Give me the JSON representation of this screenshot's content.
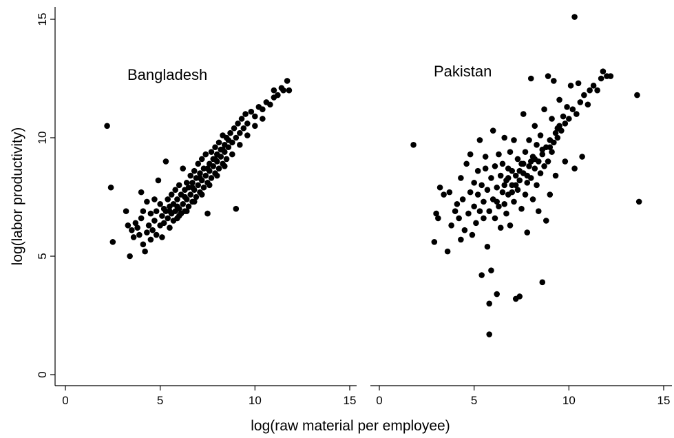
{
  "chart_data": {
    "type": "scatter",
    "xlabel": "log(raw material per employee)",
    "ylabel": "log(labor productivity)",
    "xlim": [
      0,
      15
    ],
    "ylim": [
      0,
      15
    ],
    "xticks": [
      0,
      5,
      10,
      15
    ],
    "yticks": [
      0,
      5,
      10,
      15
    ],
    "grid": false,
    "marker_color": "#000000",
    "panels": [
      {
        "title": "Bangladesh",
        "points": [
          [
            2.2,
            10.5
          ],
          [
            2.4,
            7.9
          ],
          [
            2.5,
            5.6
          ],
          [
            3.2,
            6.9
          ],
          [
            3.3,
            6.3
          ],
          [
            3.4,
            5.0
          ],
          [
            3.5,
            6.1
          ],
          [
            3.6,
            5.8
          ],
          [
            3.7,
            6.4
          ],
          [
            3.8,
            6.2
          ],
          [
            3.9,
            5.9
          ],
          [
            4.0,
            7.7
          ],
          [
            4.0,
            6.6
          ],
          [
            4.1,
            5.5
          ],
          [
            4.1,
            6.9
          ],
          [
            4.2,
            5.2
          ],
          [
            4.3,
            6.0
          ],
          [
            4.3,
            7.3
          ],
          [
            4.4,
            6.3
          ],
          [
            4.5,
            5.7
          ],
          [
            4.5,
            6.8
          ],
          [
            4.6,
            6.1
          ],
          [
            4.7,
            7.4
          ],
          [
            4.7,
            6.5
          ],
          [
            4.8,
            5.9
          ],
          [
            4.8,
            6.9
          ],
          [
            4.9,
            8.2
          ],
          [
            5.0,
            6.3
          ],
          [
            5.0,
            7.2
          ],
          [
            5.1,
            6.7
          ],
          [
            5.1,
            5.8
          ],
          [
            5.2,
            7.0
          ],
          [
            5.2,
            6.4
          ],
          [
            5.3,
            6.9
          ],
          [
            5.3,
            9.0
          ],
          [
            5.4,
            6.6
          ],
          [
            5.4,
            7.4
          ],
          [
            5.5,
            6.2
          ],
          [
            5.5,
            7.1
          ],
          [
            5.6,
            6.8
          ],
          [
            5.6,
            7.6
          ],
          [
            5.7,
            6.5
          ],
          [
            5.7,
            7.2
          ],
          [
            5.8,
            6.9
          ],
          [
            5.8,
            7.8
          ],
          [
            5.9,
            6.6
          ],
          [
            5.9,
            7.4
          ],
          [
            6.0,
            7.0
          ],
          [
            6.0,
            8.0
          ],
          [
            6.1,
            6.8
          ],
          [
            6.1,
            7.6
          ],
          [
            6.2,
            7.2
          ],
          [
            6.2,
            8.7
          ],
          [
            6.3,
            6.9
          ],
          [
            6.3,
            7.8
          ],
          [
            6.4,
            7.4
          ],
          [
            6.4,
            8.1
          ],
          [
            6.5,
            7.1
          ],
          [
            6.5,
            7.9
          ],
          [
            6.6,
            7.6
          ],
          [
            6.6,
            8.4
          ],
          [
            6.7,
            7.3
          ],
          [
            6.7,
            8.1
          ],
          [
            6.8,
            7.8
          ],
          [
            6.8,
            8.6
          ],
          [
            6.9,
            7.5
          ],
          [
            6.9,
            8.3
          ],
          [
            7.0,
            8.0
          ],
          [
            7.0,
            8.9
          ],
          [
            7.1,
            7.7
          ],
          [
            7.1,
            8.5
          ],
          [
            7.2,
            8.2
          ],
          [
            7.2,
            9.1
          ],
          [
            7.3,
            7.9
          ],
          [
            7.3,
            8.7
          ],
          [
            7.4,
            8.4
          ],
          [
            7.4,
            9.3
          ],
          [
            7.5,
            6.8
          ],
          [
            7.5,
            8.1
          ],
          [
            7.6,
            8.9
          ],
          [
            7.6,
            8.6
          ],
          [
            7.7,
            9.4
          ],
          [
            7.7,
            8.3
          ],
          [
            7.8,
            9.1
          ],
          [
            7.8,
            8.8
          ],
          [
            7.9,
            9.6
          ],
          [
            7.9,
            8.5
          ],
          [
            8.0,
            9.3
          ],
          [
            8.0,
            9.0
          ],
          [
            8.1,
            9.8
          ],
          [
            8.1,
            8.7
          ],
          [
            8.2,
            9.5
          ],
          [
            8.2,
            9.2
          ],
          [
            8.3,
            10.1
          ],
          [
            8.3,
            8.9
          ],
          [
            8.4,
            9.7
          ],
          [
            8.4,
            9.4
          ],
          [
            8.5,
            10.0
          ],
          [
            8.5,
            9.1
          ],
          [
            8.6,
            9.9
          ],
          [
            8.6,
            9.6
          ],
          [
            8.7,
            10.2
          ],
          [
            8.8,
            9.8
          ],
          [
            8.9,
            10.4
          ],
          [
            9.0,
            7.0
          ],
          [
            9.0,
            10.0
          ],
          [
            9.1,
            10.6
          ],
          [
            9.2,
            10.2
          ],
          [
            9.3,
            10.8
          ],
          [
            9.4,
            10.4
          ],
          [
            9.5,
            11.0
          ],
          [
            9.6,
            10.6
          ],
          [
            9.8,
            11.1
          ],
          [
            10.0,
            10.9
          ],
          [
            10.2,
            11.3
          ],
          [
            10.4,
            11.2
          ],
          [
            10.6,
            11.5
          ],
          [
            10.8,
            11.4
          ],
          [
            11.0,
            11.7
          ],
          [
            11.0,
            12.0
          ],
          [
            11.2,
            11.8
          ],
          [
            11.4,
            12.1
          ],
          [
            11.5,
            12.0
          ],
          [
            11.7,
            12.4
          ],
          [
            11.8,
            12.0
          ],
          [
            6.0,
            6.7
          ],
          [
            6.4,
            6.9
          ],
          [
            6.8,
            7.3
          ],
          [
            7.2,
            7.6
          ],
          [
            7.6,
            8.0
          ],
          [
            8.0,
            8.4
          ],
          [
            8.4,
            8.8
          ],
          [
            8.8,
            9.3
          ],
          [
            9.2,
            9.7
          ],
          [
            9.6,
            10.1
          ],
          [
            10.0,
            10.5
          ],
          [
            10.4,
            10.8
          ],
          [
            5.5,
            6.9
          ],
          [
            5.9,
            7.1
          ],
          [
            6.3,
            7.5
          ],
          [
            6.7,
            7.9
          ],
          [
            7.1,
            8.3
          ],
          [
            7.5,
            8.7
          ],
          [
            7.9,
            9.1
          ],
          [
            8.3,
            9.5
          ]
        ]
      },
      {
        "title": "Pakistan",
        "points": [
          [
            1.8,
            9.7
          ],
          [
            2.9,
            5.6
          ],
          [
            3.0,
            6.8
          ],
          [
            3.1,
            6.6
          ],
          [
            3.2,
            7.9
          ],
          [
            3.4,
            7.6
          ],
          [
            3.6,
            5.2
          ],
          [
            3.7,
            7.7
          ],
          [
            3.8,
            6.3
          ],
          [
            4.0,
            6.9
          ],
          [
            4.1,
            7.2
          ],
          [
            4.2,
            6.6
          ],
          [
            4.3,
            5.7
          ],
          [
            4.3,
            8.3
          ],
          [
            4.4,
            7.4
          ],
          [
            4.5,
            6.1
          ],
          [
            4.6,
            8.9
          ],
          [
            4.7,
            6.8
          ],
          [
            4.8,
            7.7
          ],
          [
            4.8,
            9.3
          ],
          [
            4.9,
            5.9
          ],
          [
            5.0,
            8.1
          ],
          [
            5.0,
            7.1
          ],
          [
            5.1,
            6.4
          ],
          [
            5.2,
            8.6
          ],
          [
            5.2,
            7.6
          ],
          [
            5.3,
            6.9
          ],
          [
            5.3,
            9.9
          ],
          [
            5.4,
            4.2
          ],
          [
            5.4,
            8.0
          ],
          [
            5.5,
            7.3
          ],
          [
            5.5,
            6.6
          ],
          [
            5.6,
            8.7
          ],
          [
            5.6,
            9.2
          ],
          [
            5.7,
            5.4
          ],
          [
            5.7,
            7.8
          ],
          [
            5.8,
            3.0
          ],
          [
            5.8,
            6.9
          ],
          [
            5.8,
            1.7
          ],
          [
            5.9,
            4.4
          ],
          [
            5.9,
            8.3
          ],
          [
            6.0,
            7.4
          ],
          [
            6.0,
            10.3
          ],
          [
            6.1,
            6.6
          ],
          [
            6.1,
            8.8
          ],
          [
            6.2,
            3.4
          ],
          [
            6.2,
            7.9
          ],
          [
            6.3,
            7.1
          ],
          [
            6.3,
            9.3
          ],
          [
            6.4,
            8.4
          ],
          [
            6.4,
            6.2
          ],
          [
            6.5,
            7.7
          ],
          [
            6.5,
            8.9
          ],
          [
            6.6,
            7.2
          ],
          [
            6.6,
            10.0
          ],
          [
            6.7,
            8.2
          ],
          [
            6.7,
            6.8
          ],
          [
            6.8,
            8.7
          ],
          [
            6.8,
            7.6
          ],
          [
            6.9,
            9.4
          ],
          [
            6.9,
            6.3
          ],
          [
            7.0,
            8.0
          ],
          [
            7.0,
            8.6
          ],
          [
            7.1,
            7.3
          ],
          [
            7.1,
            9.9
          ],
          [
            7.2,
            3.2
          ],
          [
            7.2,
            8.4
          ],
          [
            7.3,
            7.8
          ],
          [
            7.3,
            9.1
          ],
          [
            7.4,
            3.3
          ],
          [
            7.4,
            8.2
          ],
          [
            7.5,
            7.0
          ],
          [
            7.5,
            8.9
          ],
          [
            7.6,
            8.5
          ],
          [
            7.6,
            11.0
          ],
          [
            7.7,
            7.6
          ],
          [
            7.7,
            9.4
          ],
          [
            7.8,
            8.1
          ],
          [
            7.8,
            6.0
          ],
          [
            7.9,
            8.8
          ],
          [
            7.9,
            9.9
          ],
          [
            8.0,
            8.3
          ],
          [
            8.0,
            12.5
          ],
          [
            8.1,
            7.4
          ],
          [
            8.1,
            9.2
          ],
          [
            8.2,
            8.7
          ],
          [
            8.2,
            10.5
          ],
          [
            8.3,
            8.0
          ],
          [
            8.3,
            9.7
          ],
          [
            8.4,
            9.0
          ],
          [
            8.4,
            6.9
          ],
          [
            8.5,
            8.5
          ],
          [
            8.5,
            10.1
          ],
          [
            8.6,
            3.9
          ],
          [
            8.6,
            9.3
          ],
          [
            8.7,
            8.8
          ],
          [
            8.7,
            11.2
          ],
          [
            8.8,
            6.5
          ],
          [
            8.8,
            9.6
          ],
          [
            8.9,
            9.0
          ],
          [
            8.9,
            12.6
          ],
          [
            9.0,
            9.9
          ],
          [
            9.0,
            7.6
          ],
          [
            9.1,
            9.4
          ],
          [
            9.1,
            10.8
          ],
          [
            9.2,
            9.8
          ],
          [
            9.2,
            12.4
          ],
          [
            9.3,
            10.2
          ],
          [
            9.3,
            8.4
          ],
          [
            9.4,
            10.0
          ],
          [
            9.5,
            10.5
          ],
          [
            9.5,
            11.6
          ],
          [
            9.6,
            10.3
          ],
          [
            9.7,
            10.9
          ],
          [
            9.8,
            9.0
          ],
          [
            9.8,
            10.6
          ],
          [
            9.9,
            11.3
          ],
          [
            10.0,
            10.8
          ],
          [
            10.1,
            12.2
          ],
          [
            10.2,
            11.2
          ],
          [
            10.3,
            15.1
          ],
          [
            10.3,
            8.7
          ],
          [
            10.4,
            11.0
          ],
          [
            10.5,
            12.3
          ],
          [
            10.6,
            11.5
          ],
          [
            10.7,
            9.2
          ],
          [
            10.8,
            11.8
          ],
          [
            11.0,
            11.4
          ],
          [
            11.1,
            12.0
          ],
          [
            11.3,
            12.2
          ],
          [
            11.5,
            12.0
          ],
          [
            11.7,
            12.5
          ],
          [
            11.8,
            12.8
          ],
          [
            12.0,
            12.6
          ],
          [
            12.2,
            12.6
          ],
          [
            13.6,
            11.8
          ],
          [
            13.7,
            7.3
          ],
          [
            6.6,
            8.0
          ],
          [
            7.0,
            7.7
          ],
          [
            7.4,
            8.6
          ],
          [
            7.8,
            8.4
          ],
          [
            8.2,
            9.1
          ],
          [
            8.6,
            9.5
          ],
          [
            9.0,
            9.6
          ],
          [
            9.4,
            10.4
          ],
          [
            6.2,
            7.3
          ],
          [
            6.8,
            8.3
          ],
          [
            7.2,
            8.0
          ],
          [
            7.6,
            8.9
          ],
          [
            8.0,
            9.0
          ]
        ]
      }
    ]
  }
}
